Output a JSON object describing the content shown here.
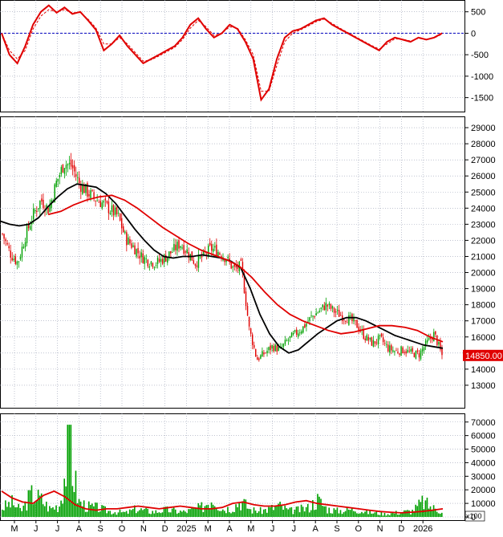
{
  "colors": {
    "grid": "#9aa0b4",
    "frame": "#000000",
    "up": "#00a000",
    "down": "#e00000",
    "ma_fast": "#000000",
    "ma_slow": "#e00000",
    "macd": "#e00000",
    "zero_line": "#0000c0",
    "volume": "#00a000",
    "volume_ma": "#e00000",
    "price_tag_bg": "#e00000",
    "price_tag_text": "#ffffff"
  },
  "chart_data": [
    {
      "type": "line",
      "panel": "oscillator",
      "yticks": [
        500,
        0,
        -500,
        -1000,
        -1500
      ],
      "ylim": [
        -1750,
        700
      ],
      "zero_line": true,
      "series": [
        {
          "style": "solid",
          "values": [
            0,
            -500,
            -700,
            -300,
            200,
            500,
            650,
            480,
            600,
            450,
            500,
            300,
            80,
            -400,
            -250,
            -50,
            -300,
            -500,
            -700,
            -600,
            -500,
            -400,
            -300,
            -100,
            200,
            350,
            100,
            -100,
            0,
            200,
            100,
            -200,
            -600,
            -1550,
            -1300,
            -600,
            -100,
            50,
            100,
            200,
            300,
            350,
            200,
            100,
            0,
            -100,
            -200,
            -300,
            -400,
            -200,
            -100,
            -150,
            -200,
            -100,
            -150,
            -100,
            0
          ]
        },
        {
          "style": "dashed",
          "values": [
            0,
            -400,
            -600,
            -400,
            100,
            400,
            550,
            500,
            550,
            480,
            480,
            330,
            120,
            -250,
            -250,
            -100,
            -250,
            -450,
            -650,
            -620,
            -530,
            -430,
            -330,
            -150,
            120,
            300,
            150,
            -50,
            0,
            150,
            120,
            -150,
            -500,
            -1350,
            -1350,
            -750,
            -200,
            0,
            80,
            170,
            270,
            330,
            230,
            120,
            20,
            -80,
            -180,
            -280,
            -370,
            -250,
            -130,
            -140,
            -180,
            -120,
            -140,
            -110,
            -20
          ]
        }
      ]
    },
    {
      "type": "candlestick",
      "panel": "price",
      "yticks": [
        13000,
        14000,
        15000,
        16000,
        17000,
        18000,
        19000,
        20000,
        21000,
        22000,
        23000,
        24000,
        25000,
        26000,
        27000,
        28000,
        29000
      ],
      "ylim": [
        11800,
        29500
      ],
      "last_price_label": "14850.00",
      "last_price": 14850,
      "close_path": [
        22400,
        21200,
        20600,
        22300,
        23600,
        24500,
        23900,
        25600,
        26800,
        26600,
        25500,
        25000,
        24600,
        24300,
        23900,
        23500,
        22100,
        21600,
        21000,
        20700,
        20600,
        20900,
        21300,
        21800,
        21300,
        20600,
        21000,
        21500,
        21300,
        20900,
        20200,
        20400,
        16500,
        14600,
        15000,
        15400,
        15200,
        15800,
        16200,
        16600,
        17200,
        17600,
        18000,
        17600,
        17300,
        17100,
        16700,
        16000,
        15600,
        15900,
        15300,
        15100,
        15200,
        15000,
        14900,
        15600,
        16200,
        14850
      ],
      "ma_fast": [
        23200,
        23000,
        22900,
        23000,
        23400,
        24100,
        24700,
        25200,
        25500,
        25400,
        25300,
        24900,
        24300,
        23500,
        22700,
        22000,
        21400,
        21000,
        20900,
        21000,
        21000,
        21100,
        21000,
        20900,
        20700,
        20300,
        19000,
        17400,
        16200,
        15400,
        15000,
        15200,
        15700,
        16200,
        16600,
        17000,
        17200,
        17200,
        17000,
        16700,
        16400,
        16100,
        15900,
        15700,
        15500,
        15400,
        15300
      ],
      "ma_slow": [
        23600,
        23800,
        24200,
        24500,
        24700,
        24800,
        24500,
        24000,
        23400,
        22800,
        22300,
        21800,
        21400,
        21100,
        20800,
        20400,
        19700,
        18800,
        18000,
        17400,
        17000,
        16700,
        16400,
        16200,
        16300,
        16500,
        16700,
        16700,
        16600,
        16400,
        16000,
        15700
      ]
    },
    {
      "type": "bar",
      "panel": "volume",
      "yticks": [
        70000,
        60000,
        50000,
        40000,
        30000,
        20000,
        10000,
        0
      ],
      "ylim": [
        0,
        74000
      ],
      "unit_label": "x100",
      "values_profile": [
        9000,
        14000,
        6000,
        22000,
        18000,
        8000,
        12000,
        68000,
        15000,
        10000,
        9000,
        6000,
        5000,
        4000,
        8000,
        6000,
        5000,
        7000,
        6000,
        5000,
        7000,
        10000,
        20000,
        8000,
        9000,
        16000,
        7000,
        6000,
        8000,
        11000,
        6000,
        7000,
        9000,
        17000,
        8000,
        6000,
        7000,
        8000,
        5000,
        4000,
        3000,
        4000,
        5000,
        6000,
        15000,
        9000,
        6000
      ],
      "ma_values": [
        19000,
        14000,
        11000,
        10000,
        16000,
        19000,
        15000,
        9000,
        6000,
        5000,
        6000,
        6000,
        7000,
        8000,
        7000,
        6000,
        7000,
        8000,
        7000,
        6000,
        6000,
        7000,
        10000,
        11000,
        9000,
        8000,
        8000,
        9000,
        11000,
        12000,
        10000,
        9000,
        8000,
        7000,
        6000,
        5000,
        4000,
        3500,
        3000,
        3500,
        4000,
        5000,
        6000
      ]
    },
    {
      "type": "axis",
      "x_labels": [
        "M",
        "J",
        "J",
        "A",
        "S",
        "O",
        "N",
        "D",
        "2025",
        "M",
        "A",
        "M",
        "J",
        "J",
        "A",
        "S",
        "O",
        "N",
        "D",
        "2026"
      ]
    }
  ]
}
